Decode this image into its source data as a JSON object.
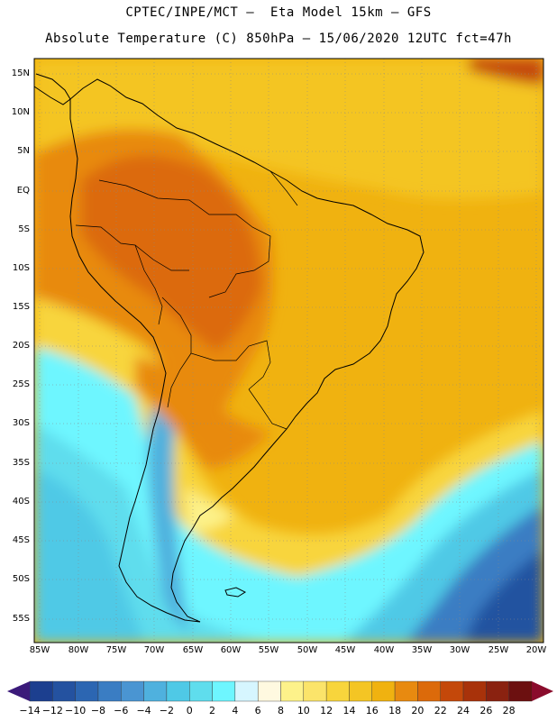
{
  "header": {
    "line1": "CPTEC/INPE/MCT –  Eta Model 15km – GFS",
    "line2": "Absolute Temperature (C) 850hPa – 15/06/2020 12UTC fct=47h"
  },
  "map": {
    "region": "South America",
    "lat_labels": [
      "15N",
      "10N",
      "5N",
      "EQ",
      "5S",
      "10S",
      "15S",
      "20S",
      "25S",
      "30S",
      "35S",
      "40S",
      "45S",
      "50S",
      "55S"
    ],
    "lon_labels": [
      "85W",
      "80W",
      "75W",
      "70W",
      "65W",
      "60W",
      "55W",
      "50W",
      "45W",
      "40W",
      "35W",
      "30W",
      "25W",
      "20W"
    ]
  },
  "colorbar": {
    "labels": [
      "-14",
      "-12",
      "-10",
      "-8",
      "-6",
      "-4",
      "-2",
      "0",
      "2",
      "4",
      "6",
      "8",
      "10",
      "12",
      "14",
      "16",
      "18",
      "20",
      "22",
      "24",
      "26",
      "28"
    ],
    "colors": [
      "#1c3f8f",
      "#2452a0",
      "#2c66b2",
      "#3a7dc3",
      "#4a95d2",
      "#4fb1de",
      "#4fc9e6",
      "#5fdded",
      "#6ef6ff",
      "#d6f6ff",
      "#fff9e0",
      "#fdf28a",
      "#fbe46a",
      "#f8d53c",
      "#f4c524",
      "#f0b210",
      "#e88a10",
      "#dc6a0a",
      "#c4480a",
      "#a8320a",
      "#8a2210",
      "#6c1010"
    ],
    "low_arrow_color": "#3b1a7a",
    "high_arrow_color": "#8a0c2c"
  }
}
